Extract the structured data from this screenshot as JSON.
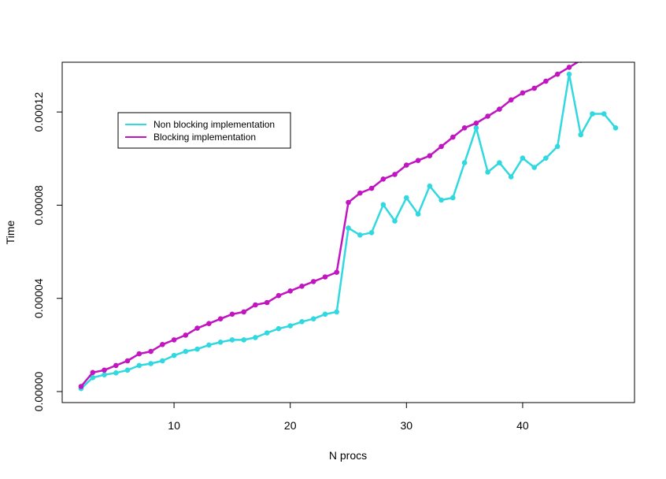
{
  "chart_data": {
    "type": "line",
    "title": "",
    "xlabel": "N procs",
    "ylabel": "Time",
    "xlim": [
      2,
      48
    ],
    "ylim": [
      0.0,
      0.00014
    ],
    "x_ticks": [
      10,
      20,
      30,
      40
    ],
    "x_tick_labels": [
      "10",
      "20",
      "30",
      "40"
    ],
    "y_ticks": [
      0.0,
      4e-05,
      8e-05,
      0.00012
    ],
    "y_tick_labels": [
      "0.00000",
      "0.00004",
      "0.00008",
      "0.00012"
    ],
    "grid": false,
    "legend_position": "top-left",
    "series": [
      {
        "name": "Non blocking implementation",
        "color": "#30D8E0",
        "x": [
          2,
          3,
          4,
          5,
          6,
          7,
          8,
          9,
          10,
          11,
          12,
          13,
          14,
          15,
          16,
          17,
          18,
          19,
          20,
          21,
          22,
          23,
          24,
          25,
          26,
          27,
          28,
          29,
          30,
          31,
          32,
          33,
          34,
          35,
          36,
          37,
          38,
          39,
          40,
          41,
          42,
          43,
          44,
          45,
          46,
          47,
          48
        ],
        "values": [
          1.3e-06,
          6e-06,
          7.2e-06,
          8e-06,
          9.2e-06,
          1.12e-05,
          1.2e-05,
          1.32e-05,
          1.55e-05,
          1.72e-05,
          1.82e-05,
          2e-05,
          2.12e-05,
          2.22e-05,
          2.22e-05,
          2.32e-05,
          2.52e-05,
          2.7e-05,
          2.82e-05,
          3e-05,
          3.12e-05,
          3.32e-05,
          3.42e-05,
          7.02e-05,
          6.72e-05,
          6.82e-05,
          8.02e-05,
          7.32e-05,
          8.32e-05,
          7.62e-05,
          8.82e-05,
          8.22e-05,
          8.32e-05,
          9.82e-05,
          0.0001132,
          9.42e-05,
          9.82e-05,
          9.22e-05,
          0.0001002,
          9.62e-05,
          0.0001002,
          0.0001052,
          0.0001362,
          0.0001102,
          0.0001192,
          0.0001192,
          0.0001132
        ]
      },
      {
        "name": "Blocking implementation",
        "color": "#C015C0",
        "x": [
          2,
          3,
          4,
          5,
          6,
          7,
          8,
          9,
          10,
          11,
          12,
          13,
          14,
          15,
          16,
          17,
          18,
          19,
          20,
          21,
          22,
          23,
          24,
          25,
          26,
          27,
          28,
          29,
          30,
          31,
          32,
          33,
          34,
          35,
          36,
          37,
          38,
          39,
          40,
          41,
          42,
          43,
          44,
          45,
          46
        ],
        "values": [
          2.2e-06,
          8.2e-06,
          9.2e-06,
          1.12e-05,
          1.32e-05,
          1.62e-05,
          1.72e-05,
          2.02e-05,
          2.22e-05,
          2.42e-05,
          2.72e-05,
          2.92e-05,
          3.12e-05,
          3.32e-05,
          3.42e-05,
          3.72e-05,
          3.82e-05,
          4.12e-05,
          4.32e-05,
          4.52e-05,
          4.72e-05,
          4.92e-05,
          5.12e-05,
          8.12e-05,
          8.52e-05,
          8.72e-05,
          9.12e-05,
          9.32e-05,
          9.72e-05,
          9.92e-05,
          0.0001012,
          0.0001052,
          0.0001092,
          0.0001132,
          0.0001152,
          0.0001182,
          0.0001212,
          0.0001252,
          0.0001282,
          0.0001302,
          0.0001332,
          0.0001362,
          0.0001392,
          0.0001422,
          0.0001452
        ]
      }
    ]
  }
}
